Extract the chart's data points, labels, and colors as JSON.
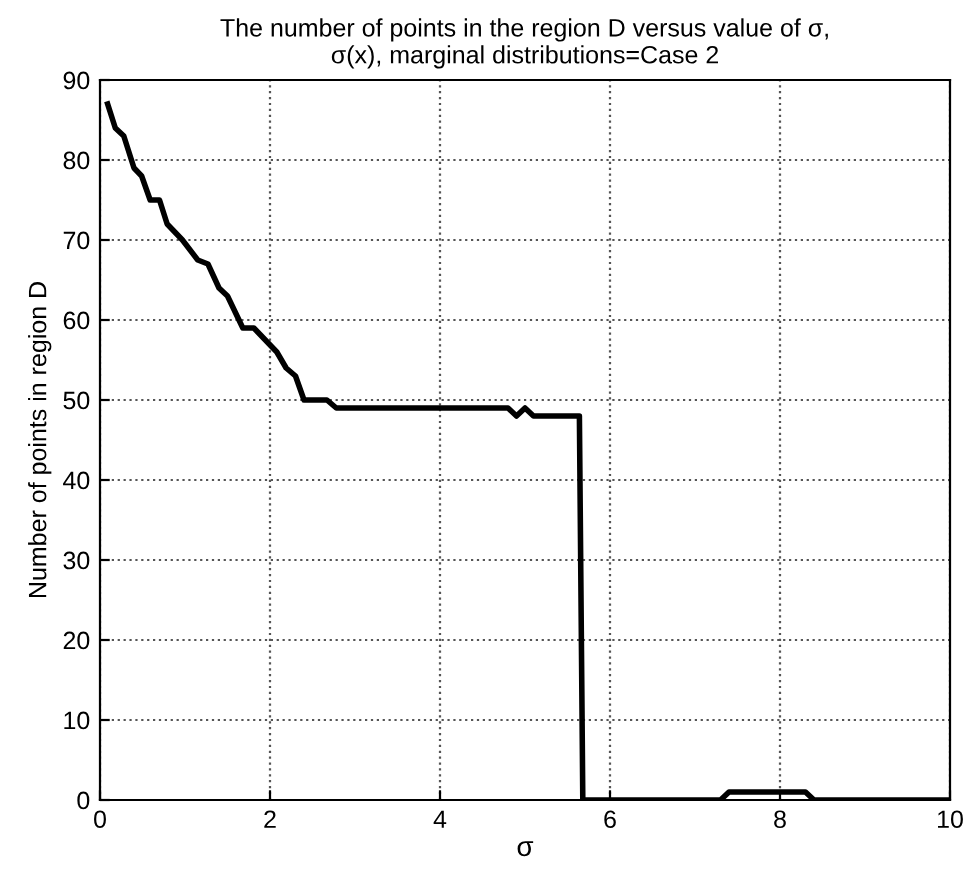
{
  "chart_data": {
    "type": "line",
    "title": "The number of points in the region D versus value of σ,\nσ(x), marginal distributions=Case 2",
    "xlabel": "σ",
    "ylabel": "Number of points in region D",
    "series": [
      {
        "color": "#000000",
        "x": [
          0.09,
          0.18,
          0.28,
          0.4,
          0.49,
          0.59,
          0.7,
          0.79,
          0.97,
          1.15,
          1.27,
          1.4,
          1.5,
          1.68,
          1.81,
          2.08,
          2.19,
          2.3,
          2.4,
          2.67,
          2.78,
          3.5,
          4.8,
          4.9,
          5.0,
          5.1,
          5.2,
          5.64,
          5.68,
          6.5,
          7.3,
          7.4,
          8.3,
          8.4,
          10
        ],
        "values": [
          87,
          84,
          83,
          79,
          78,
          75,
          75,
          72,
          70,
          67.5,
          67,
          64,
          63,
          59,
          59,
          56,
          54,
          53,
          50,
          50,
          49,
          49,
          49,
          48,
          49,
          48,
          48,
          48,
          0,
          0,
          0,
          1,
          1,
          0,
          0
        ]
      }
    ],
    "xlim": [
      0,
      10
    ],
    "xticks": [
      0,
      2,
      4,
      6,
      8,
      10
    ],
    "ylim": [
      0,
      90
    ],
    "yticks": [
      0,
      10,
      20,
      30,
      40,
      50,
      60,
      70,
      80,
      90
    ],
    "grid": true,
    "line_style": "solid",
    "marker": "none"
  }
}
